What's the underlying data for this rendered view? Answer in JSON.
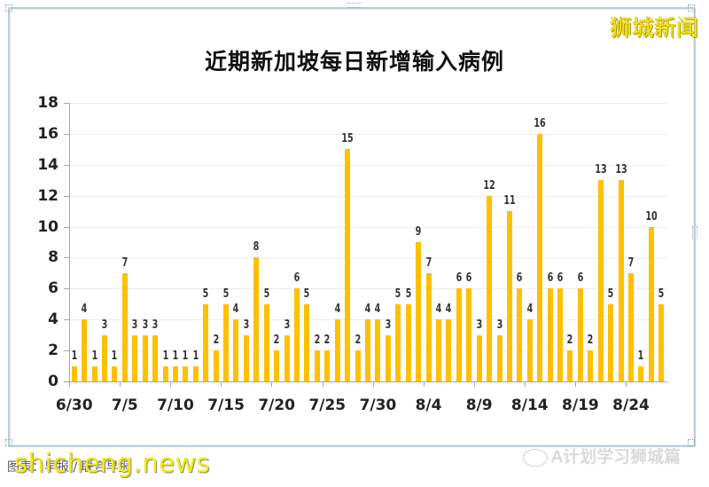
{
  "brand": "狮城新闻",
  "source_text": "图表：早报 / 联合早报",
  "watermarks": {
    "site": "shicheng.news",
    "account": "A计划学习狮城篇"
  },
  "colors": {
    "bar": "#FFC000",
    "frame": "#B9CFD6",
    "brand": "#F5E51A"
  },
  "chart_data": {
    "type": "bar",
    "title": "近期新加坡每日新增输入病例",
    "xlabel": "",
    "ylabel": "",
    "ylim": [
      0,
      18
    ],
    "yticks": [
      0,
      2,
      4,
      6,
      8,
      10,
      12,
      14,
      16,
      18
    ],
    "grid": true,
    "legend": null,
    "xtick_labels": [
      "6/30",
      "7/5",
      "7/10",
      "7/15",
      "7/20",
      "7/25",
      "7/30",
      "8/4",
      "8/9",
      "8/14",
      "8/19",
      "8/24"
    ],
    "categories": [
      "6/30",
      "7/1",
      "7/2",
      "7/3",
      "7/4",
      "7/5",
      "7/6",
      "7/7",
      "7/8",
      "7/9",
      "7/10",
      "7/11",
      "7/12",
      "7/13",
      "7/14",
      "7/15",
      "7/16",
      "7/17",
      "7/18",
      "7/19",
      "7/20",
      "7/21",
      "7/22",
      "7/23",
      "7/24",
      "7/25",
      "7/26",
      "7/27",
      "7/28",
      "7/29",
      "7/30",
      "7/31",
      "8/1",
      "8/2",
      "8/3",
      "8/4",
      "8/5",
      "8/6",
      "8/7",
      "8/8",
      "8/9",
      "8/10",
      "8/11",
      "8/12",
      "8/13",
      "8/14",
      "8/15",
      "8/16",
      "8/17",
      "8/18",
      "8/19",
      "8/20",
      "8/21",
      "8/22",
      "8/23",
      "8/24",
      "8/25",
      "8/26",
      "8/27"
    ],
    "values": [
      1,
      4,
      1,
      3,
      1,
      7,
      3,
      3,
      3,
      1,
      1,
      1,
      1,
      5,
      2,
      5,
      4,
      3,
      8,
      5,
      2,
      3,
      6,
      5,
      2,
      2,
      4,
      15,
      2,
      4,
      4,
      3,
      5,
      5,
      9,
      7,
      4,
      4,
      6,
      6,
      3,
      12,
      3,
      11,
      6,
      4,
      16,
      6,
      6,
      2,
      6,
      2,
      13,
      5,
      13,
      7,
      1,
      10,
      5
    ],
    "data_labels": true
  }
}
